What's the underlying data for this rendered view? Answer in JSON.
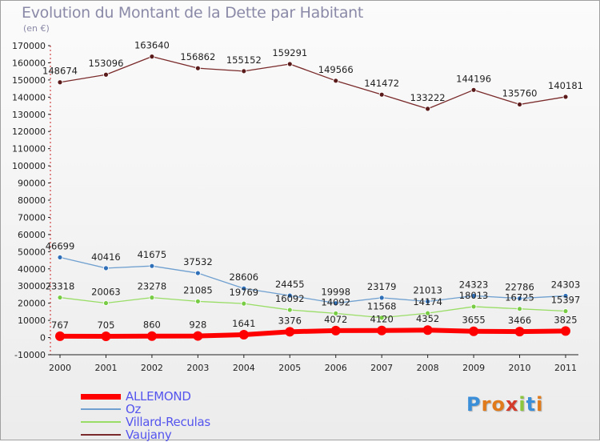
{
  "title": "Evolution du Montant de la Dette par Habitant",
  "unit_label": "(en €)",
  "logo": {
    "text": "Proxiti",
    "letters": [
      "P",
      "r",
      "o",
      "x",
      "i",
      "t",
      "i"
    ],
    "letter_colors": [
      "#3a8fd8",
      "#e07a1a",
      "#e07a1a",
      "#d43a2a",
      "#8cc63f",
      "#3a8fd8",
      "#e07a1a"
    ]
  },
  "chart_data": {
    "type": "line",
    "title": "Evolution du Montant de la Dette par Habitant",
    "subtitle": "(en €)",
    "xlabel": "",
    "ylabel": "",
    "categories": [
      "2000",
      "2001",
      "2002",
      "2003",
      "2004",
      "2005",
      "2006",
      "2007",
      "2008",
      "2009",
      "2010",
      "2011"
    ],
    "ylim": [
      -10000,
      170000
    ],
    "yticks": [
      -10000,
      0,
      10000,
      20000,
      30000,
      40000,
      50000,
      60000,
      70000,
      80000,
      90000,
      100000,
      110000,
      120000,
      130000,
      140000,
      150000,
      160000,
      170000
    ],
    "grid": false,
    "legend_position": "bottom-left",
    "series": [
      {
        "name": "ALLEMOND",
        "color": "#ff0000",
        "dot_color": "#ff0000",
        "line_width": 6,
        "dot_radius": 6,
        "values": [
          767,
          705,
          860,
          928,
          1641,
          3376,
          4072,
          4120,
          4352,
          3655,
          3466,
          3825
        ]
      },
      {
        "name": "Oz",
        "color": "#6fa0d0",
        "dot_color": "#2f6fb8",
        "line_width": 1.3,
        "dot_radius": 3,
        "values": [
          46699,
          40416,
          41675,
          37532,
          28606,
          24455,
          19998,
          23179,
          21013,
          24323,
          22786,
          24303
        ]
      },
      {
        "name": "Villard-Reculas",
        "color": "#99dd66",
        "dot_color": "#77cc44",
        "line_width": 1.3,
        "dot_radius": 3,
        "values": [
          23318,
          20063,
          23278,
          21085,
          19769,
          16092,
          14092,
          11568,
          14174,
          18013,
          16725,
          15397
        ]
      },
      {
        "name": "Vaujany",
        "color": "#7a2a2a",
        "dot_color": "#5a1a1a",
        "line_width": 1.3,
        "dot_radius": 3,
        "values": [
          148674,
          153096,
          163640,
          156862,
          155152,
          159291,
          149566,
          141472,
          133222,
          144196,
          135760,
          140181
        ]
      }
    ]
  }
}
